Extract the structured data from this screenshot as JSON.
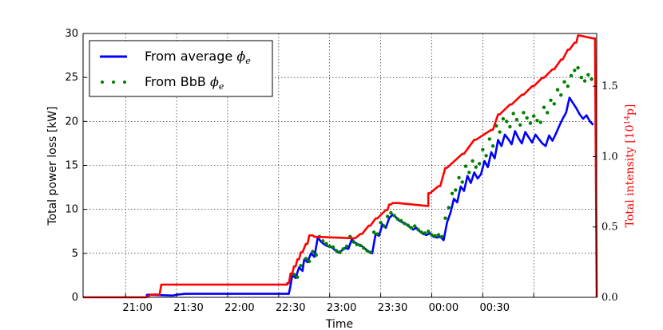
{
  "chart_data": {
    "type": "line",
    "xlabel": "Time",
    "ylabel": "Total power loss [kW]",
    "ylabel_right": "Total intensity [10",
    "ylabel_right_exp": "14",
    "ylabel_right_tail": "p]",
    "ylim": [
      0,
      30
    ],
    "ylim_right": [
      0,
      1.875
    ],
    "xlim": [
      0,
      302
    ],
    "x_unit": "minutes from 20:35",
    "y_ticks": [
      0,
      5,
      10,
      15,
      20,
      25,
      30
    ],
    "y_tick_labels": [
      "0",
      "5",
      "10",
      "15",
      "20",
      "25",
      "30"
    ],
    "y_right_ticks": [
      0,
      0.5,
      1.0,
      1.5
    ],
    "y_right_tick_labels": [
      "0.0",
      "0.5",
      "1.0",
      "1.5"
    ],
    "x_ticks": [
      25,
      55,
      85,
      115,
      145,
      175,
      205,
      235,
      265
    ],
    "x_tick_labels": [
      "21:00",
      "21:30",
      "22:00",
      "22:30",
      "23:00",
      "23:30",
      "00:00",
      "00:30"
    ],
    "x_tick_label_positions": [
      32,
      62,
      92,
      122,
      152,
      182,
      212,
      242
    ],
    "grid": true,
    "legend_position": "top-left",
    "legend": [
      {
        "label": "From average",
        "symbol": "ϕ",
        "sub": "e",
        "style": "line",
        "color": "#0000ff"
      },
      {
        "label": "From BbB",
        "symbol": "ϕ",
        "sub": "e",
        "style": "dots",
        "color": "#007f00"
      }
    ],
    "series": [
      {
        "name": "From average ϕe",
        "color": "#0000ff",
        "axis": "left",
        "x": [
          37,
          38,
          53,
          55,
          60,
          80,
          100,
          121,
          122,
          123,
          125,
          127,
          129,
          130,
          132,
          134,
          136,
          138,
          140,
          142,
          144,
          146,
          148,
          150,
          152,
          154,
          156,
          158,
          160,
          162,
          164,
          166,
          168,
          170,
          172,
          174,
          176,
          178,
          180,
          182,
          184,
          186,
          188,
          190,
          192,
          194,
          196,
          198,
          200,
          202,
          204,
          206,
          208,
          210,
          212,
          214,
          216,
          218,
          220,
          222,
          224,
          226,
          228,
          230,
          232,
          234,
          236,
          238,
          240,
          242,
          244,
          246,
          248,
          250,
          252,
          254,
          256,
          258,
          260,
          262,
          264,
          266,
          268,
          270,
          272,
          274,
          276,
          278,
          280,
          282,
          284,
          286,
          288,
          290,
          292,
          294,
          296,
          298,
          300
        ],
        "y": [
          0.2,
          0.3,
          0.2,
          0.3,
          0.4,
          0.4,
          0.4,
          0.4,
          1.4,
          2.5,
          2.2,
          3.4,
          3.0,
          4.3,
          4.0,
          5.0,
          4.6,
          6.8,
          6.3,
          6.0,
          5.8,
          5.7,
          5.4,
          5.1,
          5.3,
          5.6,
          5.5,
          6.6,
          6.2,
          6.0,
          5.8,
          5.5,
          5.2,
          5.0,
          7.2,
          7.0,
          8.3,
          7.9,
          9.0,
          9.4,
          9.1,
          8.7,
          8.5,
          8.3,
          8.0,
          7.7,
          7.9,
          7.5,
          7.2,
          7.1,
          7.3,
          6.9,
          6.8,
          6.9,
          6.5,
          8.5,
          9.6,
          11.2,
          10.8,
          12.6,
          12.1,
          13.8,
          13.0,
          14.2,
          13.5,
          14.0,
          15.5,
          14.8,
          16.5,
          15.8,
          17.9,
          17.2,
          18.5,
          18.0,
          17.4,
          18.9,
          18.1,
          17.5,
          18.8,
          18.2,
          17.6,
          18.5,
          18.0,
          17.5,
          17.2,
          18.4,
          17.8,
          18.6,
          19.5,
          20.3,
          21.0,
          22.7,
          22.1,
          21.5,
          20.8,
          20.3,
          20.7,
          20.0,
          19.6
        ]
      },
      {
        "name": "From BbB ϕe",
        "color": "#007f00",
        "axis": "left",
        "style": "dots",
        "x": [
          124,
          126,
          128,
          131,
          133,
          135,
          137,
          139,
          141,
          143,
          145,
          147,
          149,
          151,
          153,
          155,
          157,
          159,
          161,
          163,
          165,
          167,
          169,
          171,
          173,
          175,
          177,
          179,
          181,
          183,
          185,
          187,
          189,
          191,
          193,
          195,
          197,
          199,
          201,
          203,
          205,
          207,
          209,
          211,
          213,
          215,
          217,
          219,
          221,
          223,
          225,
          227,
          229,
          231,
          233,
          235,
          237,
          239,
          241,
          243,
          245,
          247,
          249,
          251,
          253,
          255,
          257,
          259,
          261,
          263,
          265,
          267,
          269,
          271,
          273,
          275,
          277,
          279,
          281,
          283,
          285,
          287,
          289,
          291,
          293,
          295,
          297,
          299
        ],
        "y": [
          2.6,
          2.3,
          3.6,
          4.4,
          4.1,
          5.2,
          4.8,
          6.9,
          6.4,
          6.1,
          5.8,
          5.7,
          5.3,
          5.1,
          5.5,
          5.8,
          6.9,
          6.3,
          6.0,
          5.9,
          5.6,
          5.3,
          5.1,
          7.4,
          7.2,
          8.5,
          8.1,
          9.2,
          9.6,
          9.3,
          8.9,
          8.7,
          8.4,
          8.2,
          7.9,
          8.1,
          7.7,
          7.4,
          7.3,
          7.5,
          7.1,
          7.0,
          7.1,
          6.9,
          9.0,
          10.2,
          11.8,
          12.2,
          13.6,
          13.1,
          14.9,
          14.2,
          15.5,
          14.8,
          15.2,
          16.8,
          16.1,
          18.0,
          17.2,
          19.5,
          18.8,
          20.3,
          20.0,
          19.4,
          20.9,
          20.2,
          19.6,
          21.0,
          20.4,
          19.8,
          20.6,
          20.1,
          19.9,
          21.6,
          21.0,
          22.4,
          22.0,
          23.6,
          23.0,
          24.5,
          24.0,
          25.2,
          25.8,
          26.1,
          25.0,
          24.6,
          25.3,
          24.8
        ]
      },
      {
        "name": "Total intensity",
        "color": "#ff0000",
        "axis": "right",
        "x": [
          0,
          37,
          40,
          45,
          46,
          120,
          120,
          121,
          122,
          123,
          124,
          125,
          126,
          127,
          128,
          129,
          131,
          132,
          133,
          135,
          136,
          137,
          159,
          160,
          163,
          164,
          168,
          169,
          172,
          173,
          178,
          179,
          180,
          181,
          182,
          183,
          184,
          185,
          202,
          203,
          203,
          204,
          209,
          210,
          213,
          214,
          223,
          224,
          230,
          231,
          240,
          241,
          244,
          245,
          251,
          252,
          258,
          259,
          264,
          265,
          270,
          271,
          276,
          277,
          281,
          282,
          285,
          286,
          289,
          290,
          291,
          292,
          300,
          301,
          302
        ],
        "y": [
          0,
          0,
          0.02,
          0.02,
          0.09,
          0.09,
          0.1,
          0.1,
          0.17,
          0.17,
          0.22,
          0.22,
          0.27,
          0.27,
          0.32,
          0.32,
          0.38,
          0.38,
          0.44,
          0.44,
          0.43,
          0.43,
          0.42,
          0.42,
          0.45,
          0.45,
          0.51,
          0.51,
          0.56,
          0.56,
          0.62,
          0.62,
          0.66,
          0.66,
          0.67,
          0.67,
          0.67,
          0.67,
          0.65,
          0.65,
          0.74,
          0.74,
          0.79,
          0.79,
          0.92,
          0.92,
          1.02,
          1.02,
          1.12,
          1.12,
          1.19,
          1.19,
          1.3,
          1.3,
          1.37,
          1.37,
          1.44,
          1.44,
          1.5,
          1.5,
          1.56,
          1.56,
          1.62,
          1.62,
          1.69,
          1.69,
          1.76,
          1.76,
          1.81,
          1.81,
          1.86,
          1.86,
          1.84,
          1.84,
          0.0
        ]
      }
    ]
  }
}
